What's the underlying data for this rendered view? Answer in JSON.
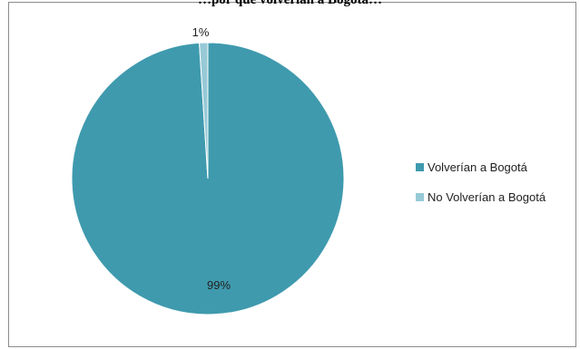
{
  "chart_data": {
    "type": "pie",
    "title": "…por qué volverían a Bogotá…",
    "categories": [
      "Volverían a Bogotá",
      "No Volverían a Bogotá"
    ],
    "values": [
      99,
      1
    ],
    "data_labels": [
      "99%",
      "1%"
    ],
    "colors": [
      "#3f9aae",
      "#97c9d6"
    ],
    "legend_position": "right"
  }
}
